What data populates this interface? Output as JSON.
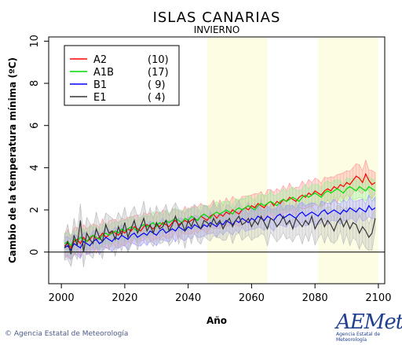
{
  "chart_data": {
    "type": "line",
    "title": "ISLAS CANARIAS",
    "subtitle": "INVIERNO",
    "xlabel": "Año",
    "ylabel": "Cambio de la temperatura mínima (ºC)",
    "xlim": [
      1996,
      2102
    ],
    "ylim": [
      -1.5,
      10.2
    ],
    "x_ticks": [
      2000,
      2020,
      2040,
      2060,
      2080,
      2100
    ],
    "y_ticks": [
      0,
      2,
      4,
      6,
      8,
      10
    ],
    "zero_line": 0,
    "highlight_periods": [
      [
        2046,
        2065
      ],
      [
        2081,
        2100
      ]
    ],
    "highlight_color": "#fdfde3",
    "legend_position": "top-left",
    "series": [
      {
        "name": "A2",
        "count": "(10)",
        "color": "#ff0000",
        "band_color": "#ff9999",
        "start": 2001,
        "values": [
          0.3,
          0.4,
          0.2,
          0.5,
          0.6,
          0.4,
          0.7,
          0.5,
          0.6,
          0.8,
          0.6,
          0.7,
          0.9,
          0.7,
          0.8,
          1.0,
          0.9,
          0.8,
          1.0,
          0.9,
          1.1,
          1.0,
          1.2,
          1.1,
          1.0,
          1.2,
          1.3,
          1.2,
          1.1,
          1.3,
          1.2,
          1.4,
          1.3,
          1.2,
          1.4,
          1.5,
          1.3,
          1.4,
          1.5,
          1.4,
          1.5,
          1.6,
          1.5,
          1.7,
          1.6,
          1.5,
          1.7,
          1.8,
          1.6,
          1.8,
          1.7,
          1.9,
          1.8,
          2.0,
          1.9,
          1.8,
          2.0,
          2.1,
          2.0,
          2.2,
          2.1,
          2.3,
          2.2,
          2.1,
          2.3,
          2.4,
          2.2,
          2.4,
          2.3,
          2.5,
          2.4,
          2.6,
          2.5,
          2.4,
          2.6,
          2.7,
          2.6,
          2.8,
          2.7,
          2.9,
          2.8,
          2.7,
          2.9,
          3.0,
          2.9,
          3.1,
          3.0,
          3.2,
          3.1,
          3.3,
          3.2,
          3.4,
          3.6,
          3.5,
          3.3,
          3.7,
          3.4,
          3.2,
          3.3
        ]
      },
      {
        "name": "A1B",
        "count": "(17)",
        "color": "#00dd00",
        "band_color": "#99ee99",
        "start": 2001,
        "values": [
          0.4,
          0.5,
          0.3,
          0.6,
          0.5,
          0.7,
          0.6,
          0.5,
          0.7,
          0.8,
          0.7,
          0.6,
          0.8,
          0.9,
          0.8,
          0.9,
          1.0,
          0.9,
          1.1,
          1.0,
          1.1,
          1.2,
          1.1,
          1.0,
          1.2,
          1.3,
          1.2,
          1.3,
          1.4,
          1.2,
          1.4,
          1.3,
          1.5,
          1.4,
          1.5,
          1.6,
          1.5,
          1.4,
          1.6,
          1.5,
          1.7,
          1.6,
          1.5,
          1.7,
          1.8,
          1.7,
          1.6,
          1.8,
          1.9,
          1.8,
          1.9,
          2.0,
          1.9,
          1.8,
          2.0,
          2.1,
          2.0,
          2.1,
          2.2,
          2.1,
          2.0,
          2.2,
          2.3,
          2.2,
          2.3,
          2.4,
          2.3,
          2.2,
          2.4,
          2.5,
          2.4,
          2.5,
          2.6,
          2.5,
          2.4,
          2.6,
          2.7,
          2.6,
          2.7,
          2.8,
          2.7,
          2.6,
          2.8,
          2.9,
          2.8,
          2.9,
          3.0,
          2.9,
          2.8,
          3.0,
          3.1,
          3.0,
          2.9,
          3.1,
          3.0,
          2.9,
          3.1,
          3.0,
          2.9
        ]
      },
      {
        "name": "B1",
        "count": "( 9)",
        "color": "#0000ff",
        "band_color": "#9999ff",
        "start": 2001,
        "values": [
          0.2,
          0.3,
          0.1,
          0.4,
          0.3,
          0.2,
          0.5,
          0.4,
          0.3,
          0.5,
          0.6,
          0.4,
          0.5,
          0.7,
          0.6,
          0.5,
          0.7,
          0.6,
          0.8,
          0.7,
          0.6,
          0.8,
          0.9,
          0.7,
          0.8,
          0.9,
          0.8,
          1.0,
          0.9,
          0.8,
          1.0,
          1.1,
          0.9,
          1.0,
          1.1,
          1.0,
          1.2,
          1.1,
          1.0,
          1.2,
          1.1,
          1.3,
          1.2,
          1.1,
          1.3,
          1.2,
          1.4,
          1.3,
          1.2,
          1.4,
          1.3,
          1.5,
          1.4,
          1.3,
          1.5,
          1.4,
          1.6,
          1.5,
          1.4,
          1.6,
          1.5,
          1.7,
          1.6,
          1.5,
          1.7,
          1.6,
          1.5,
          1.7,
          1.8,
          1.6,
          1.7,
          1.8,
          1.7,
          1.6,
          1.8,
          1.9,
          1.7,
          1.8,
          1.9,
          1.8,
          1.7,
          1.9,
          2.0,
          1.8,
          1.9,
          2.0,
          1.9,
          1.8,
          2.0,
          1.9,
          2.1,
          2.0,
          1.9,
          2.1,
          2.0,
          1.9,
          2.2,
          2.0,
          2.1
        ]
      },
      {
        "name": "E1",
        "count": "( 4)",
        "color": "#333333",
        "band_color": "#bbbbbb",
        "start": 2001,
        "values": [
          0.2,
          0.5,
          -0.1,
          0.8,
          0.3,
          1.5,
          0.0,
          0.9,
          0.6,
          0.4,
          1.1,
          0.7,
          0.5,
          1.3,
          0.9,
          1.0,
          0.6,
          1.2,
          0.8,
          1.4,
          0.7,
          1.1,
          1.5,
          0.9,
          1.2,
          1.6,
          1.0,
          1.3,
          0.9,
          1.4,
          1.1,
          1.2,
          1.5,
          1.0,
          1.3,
          1.7,
          1.2,
          1.4,
          1.0,
          1.5,
          1.2,
          1.6,
          1.3,
          1.1,
          1.5,
          1.4,
          1.2,
          1.6,
          1.3,
          1.5,
          1.1,
          1.4,
          1.6,
          1.2,
          1.5,
          1.7,
          1.3,
          1.4,
          1.6,
          1.2,
          1.5,
          1.3,
          1.7,
          1.4,
          1.1,
          1.6,
          1.5,
          1.2,
          1.4,
          1.7,
          1.3,
          1.5,
          1.1,
          1.6,
          1.4,
          1.2,
          1.5,
          1.3,
          1.7,
          1.1,
          1.4,
          1.6,
          1.2,
          1.5,
          1.3,
          1.0,
          1.4,
          1.6,
          1.2,
          1.5,
          1.1,
          1.4,
          1.3,
          0.9,
          1.2,
          1.0,
          0.7,
          0.9,
          1.6
        ]
      }
    ]
  },
  "footer": {
    "copyright": "© Agencia Estatal de Meteorología",
    "logo_text": "AEMet",
    "logo_subtext": "Agencia Estatal de Meteorología"
  }
}
